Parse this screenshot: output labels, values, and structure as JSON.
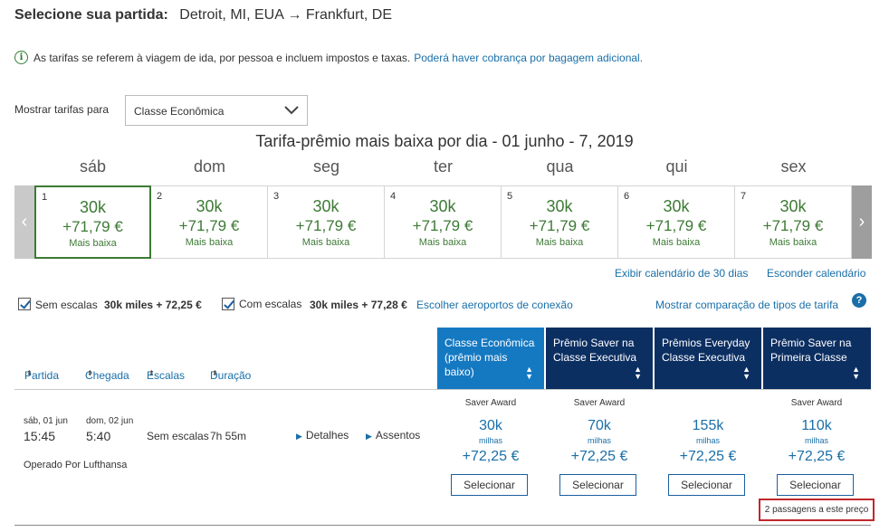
{
  "header": {
    "label": "Selecione sua partida:",
    "route": "Detroit, MI, EUA → Frankfurt, DE"
  },
  "info": {
    "icon": "info-icon",
    "text": "As tarifas se referem à viagem de ida, por pessoa e incluem impostos e taxas.",
    "link": "Poderá haver cobrança por bagagem adicional."
  },
  "fare_filter": {
    "label": "Mostrar tarifas para",
    "selected": "Classe Econômica"
  },
  "calendar": {
    "title": "Tarifa-prêmio mais baixa por dia - 01 junho - 7, 2019",
    "days": [
      {
        "dow": "sáb",
        "num": "1",
        "miles": "30k",
        "price": "+71,79 €",
        "note": "Mais baixa",
        "selected": true
      },
      {
        "dow": "dom",
        "num": "2",
        "miles": "30k",
        "price": "+71,79 €",
        "note": "Mais baixa",
        "selected": false
      },
      {
        "dow": "seg",
        "num": "3",
        "miles": "30k",
        "price": "+71,79 €",
        "note": "Mais baixa",
        "selected": false
      },
      {
        "dow": "ter",
        "num": "4",
        "miles": "30k",
        "price": "+71,79 €",
        "note": "Mais baixa",
        "selected": false
      },
      {
        "dow": "qua",
        "num": "5",
        "miles": "30k",
        "price": "+71,79 €",
        "note": "Mais baixa",
        "selected": false
      },
      {
        "dow": "qui",
        "num": "6",
        "miles": "30k",
        "price": "+71,79 €",
        "note": "Mais baixa",
        "selected": false
      },
      {
        "dow": "sex",
        "num": "7",
        "miles": "30k",
        "price": "+71,79 €",
        "note": "Mais baixa",
        "selected": false
      }
    ],
    "prev_icon": "‹",
    "next_icon": "›",
    "link_30day": "Exibir calendário de 30 dias",
    "link_hide": "Esconder calendário"
  },
  "filters": {
    "nonstop_label": "Sem escalas",
    "nonstop_price": "30k miles + 72,25 €",
    "stops_label": "Com escalas",
    "stops_price": "30k miles + 77,28 €",
    "airports_link": "Escolher aeroportos de conexão",
    "compare_link": "Mostrar comparação de tipos de tarifa",
    "help_icon": "?"
  },
  "sort_columns": [
    "Partida",
    "Chegada",
    "Escalas",
    "Duração"
  ],
  "sort_icon": "⬍",
  "fare_columns": [
    {
      "line1": "Classe Econômica",
      "line2": "(prêmio mais",
      "line3": "baixo)"
    },
    {
      "line1": "Prêmio Saver na",
      "line2": "Classe Executiva",
      "line3": ""
    },
    {
      "line1": "Prêmios Everyday",
      "line2": "Classe Executiva",
      "line3": ""
    },
    {
      "line1": "Prêmio Saver na",
      "line2": "Primeira Classe",
      "line3": ""
    }
  ],
  "flight": {
    "depart_date": "sáb, 01 jun",
    "depart_time": "15:45",
    "arrive_date": "dom, 02 jun",
    "arrive_time": "5:40",
    "stops": "Sem escalas",
    "duration": "7h 55m",
    "details_link": "Detalhes",
    "seats_link": "Assentos",
    "operated_by": "Operado Por Lufthansa",
    "fares": [
      {
        "award": "Saver Award",
        "miles": "30k",
        "miles_label": "milhas",
        "price": "+72,25 €",
        "button": "Selecionar"
      },
      {
        "award": "Saver Award",
        "miles": "70k",
        "miles_label": "milhas",
        "price": "+72,25 €",
        "button": "Selecionar"
      },
      {
        "award": "",
        "miles": "155k",
        "miles_label": "milhas",
        "price": "+72,25 €",
        "button": "Selecionar"
      },
      {
        "award": "Saver Award",
        "miles": "110k",
        "miles_label": "milhas",
        "price": "+72,25 €",
        "button": "Selecionar"
      }
    ],
    "seats_note": "2 passagens a este preço"
  },
  "colors": {
    "navy": "#0c2f62",
    "active_blue": "#1579c2",
    "link_blue": "#1a6fa8",
    "green": "#3d7a35",
    "red_outline": "#c0282d"
  }
}
